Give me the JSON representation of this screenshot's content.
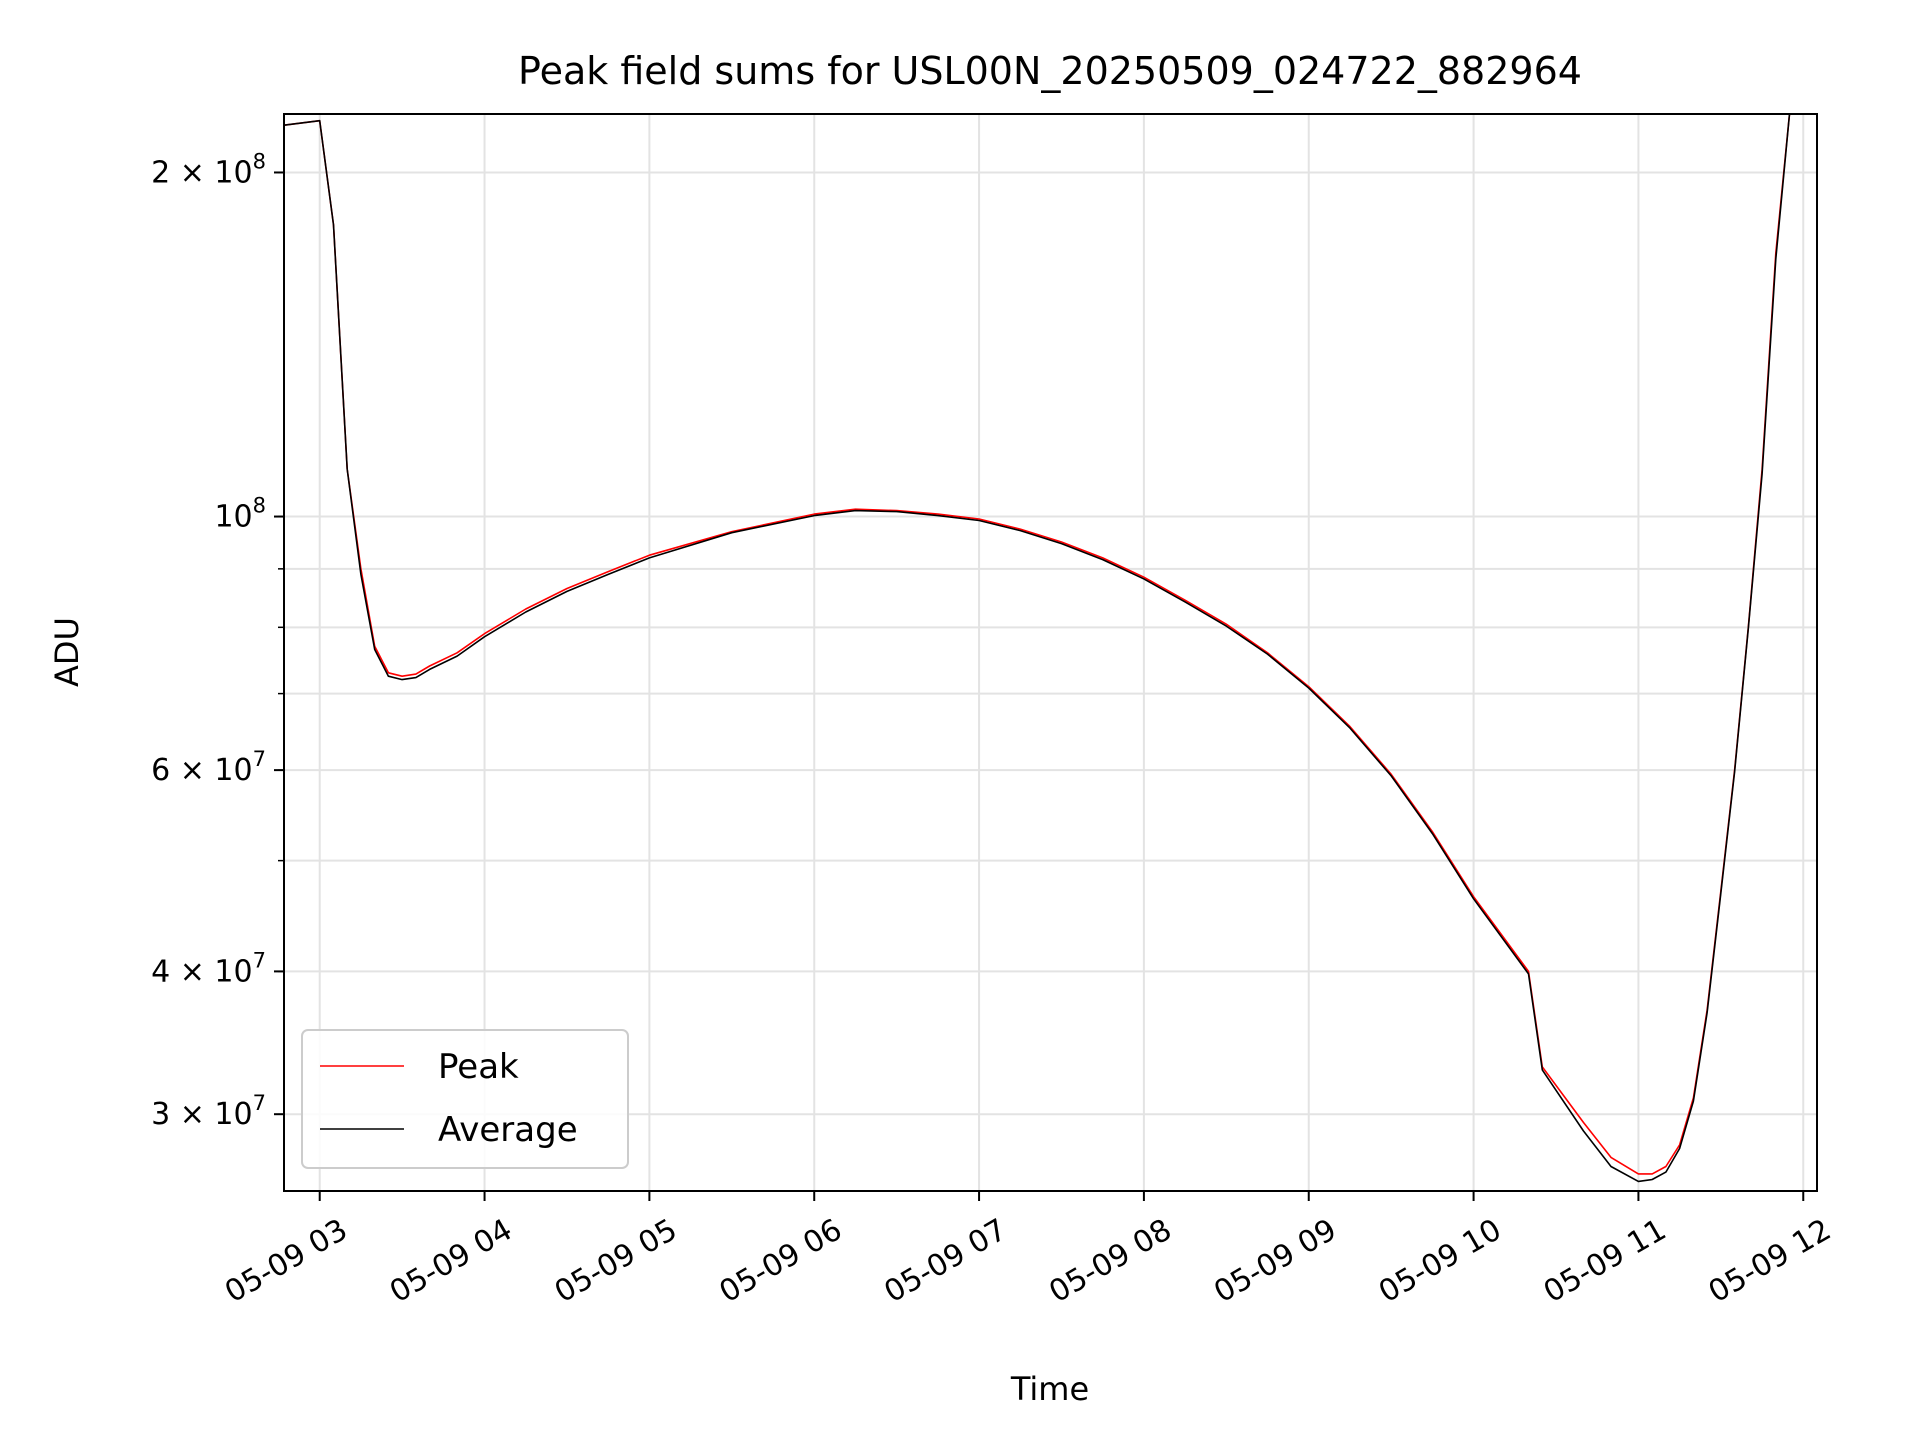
{
  "chart_data": {
    "type": "line",
    "title": "Peak field sums for USL00N_20250509_024722_882964",
    "xlabel": "Time",
    "ylabel": "ADU",
    "xlim": [
      "05-09 02:47",
      "05-09 12:05"
    ],
    "ylim": [
      25700000,
      225000000
    ],
    "yscale": "log",
    "grid": true,
    "legend_position": "lower-left",
    "x_ticks": [
      "05-09 03",
      "05-09 04",
      "05-09 05",
      "05-09 06",
      "05-09 07",
      "05-09 08",
      "05-09 09",
      "05-09 10",
      "05-09 11",
      "05-09 12"
    ],
    "y_ticks": [
      {
        "value": 30000000,
        "mantissa": "3",
        "exp": "7"
      },
      {
        "value": 40000000,
        "mantissa": "4",
        "exp": "7"
      },
      {
        "value": 60000000,
        "mantissa": "6",
        "exp": "7"
      },
      {
        "value": 100000000,
        "mantissa": "",
        "exp": "8"
      },
      {
        "value": 200000000,
        "mantissa": "2",
        "exp": "8"
      }
    ],
    "series": [
      {
        "name": "Peak",
        "color": "#ff0000",
        "x": [
          "02:47",
          "03:00",
          "03:05",
          "03:10",
          "03:15",
          "03:20",
          "03:25",
          "03:30",
          "03:35",
          "03:40",
          "03:50",
          "04:00",
          "04:15",
          "04:30",
          "04:45",
          "05:00",
          "05:30",
          "06:00",
          "06:15",
          "06:30",
          "06:45",
          "07:00",
          "07:15",
          "07:30",
          "07:45",
          "08:00",
          "08:15",
          "08:30",
          "08:45",
          "09:00",
          "09:15",
          "09:30",
          "09:45",
          "10:00",
          "10:20",
          "10:25",
          "10:40",
          "10:50",
          "11:00",
          "11:05",
          "11:10",
          "11:15",
          "11:20",
          "11:25",
          "11:30",
          "11:35",
          "11:40",
          "11:45",
          "11:50",
          "11:55"
        ],
        "values": [
          220000000,
          222000000,
          180000000,
          110000000,
          90000000,
          77000000,
          73000000,
          72500000,
          72800000,
          74000000,
          76000000,
          79000000,
          83000000,
          86500000,
          89500000,
          92500000,
          97000000,
          100500000,
          101500000,
          101200000,
          100500000,
          99500000,
          97500000,
          95000000,
          92000000,
          88500000,
          84500000,
          80500000,
          76000000,
          71000000,
          65500000,
          59500000,
          53000000,
          46500000,
          40000000,
          33000000,
          29500000,
          27500000,
          26600000,
          26600000,
          27000000,
          28200000,
          31000000,
          37000000,
          47000000,
          60000000,
          80000000,
          110000000,
          170000000,
          225000000
        ]
      },
      {
        "name": "Average",
        "color": "#000000",
        "x": [
          "02:47",
          "03:00",
          "03:05",
          "03:10",
          "03:15",
          "03:20",
          "03:25",
          "03:30",
          "03:35",
          "03:40",
          "03:50",
          "04:00",
          "04:15",
          "04:30",
          "04:45",
          "05:00",
          "05:30",
          "06:00",
          "06:15",
          "06:30",
          "06:45",
          "07:00",
          "07:15",
          "07:30",
          "07:45",
          "08:00",
          "08:15",
          "08:30",
          "08:45",
          "09:00",
          "09:15",
          "09:30",
          "09:45",
          "10:00",
          "10:20",
          "10:25",
          "10:40",
          "10:50",
          "11:00",
          "11:05",
          "11:10",
          "11:15",
          "11:20",
          "11:25",
          "11:30",
          "11:35",
          "11:40",
          "11:45",
          "11:50",
          "11:55"
        ],
        "values": [
          220000000,
          222000000,
          180000000,
          110000000,
          89000000,
          76500000,
          72500000,
          72000000,
          72300000,
          73500000,
          75500000,
          78500000,
          82500000,
          86000000,
          89000000,
          92000000,
          96800000,
          100200000,
          101200000,
          101000000,
          100200000,
          99200000,
          97200000,
          94700000,
          91700000,
          88200000,
          84200000,
          80200000,
          75800000,
          70800000,
          65300000,
          59300000,
          52800000,
          46300000,
          39800000,
          32800000,
          29000000,
          27000000,
          26200000,
          26300000,
          26700000,
          28000000,
          30800000,
          36800000,
          46800000,
          59800000,
          79800000,
          109000000,
          168000000,
          225000000
        ]
      }
    ]
  }
}
